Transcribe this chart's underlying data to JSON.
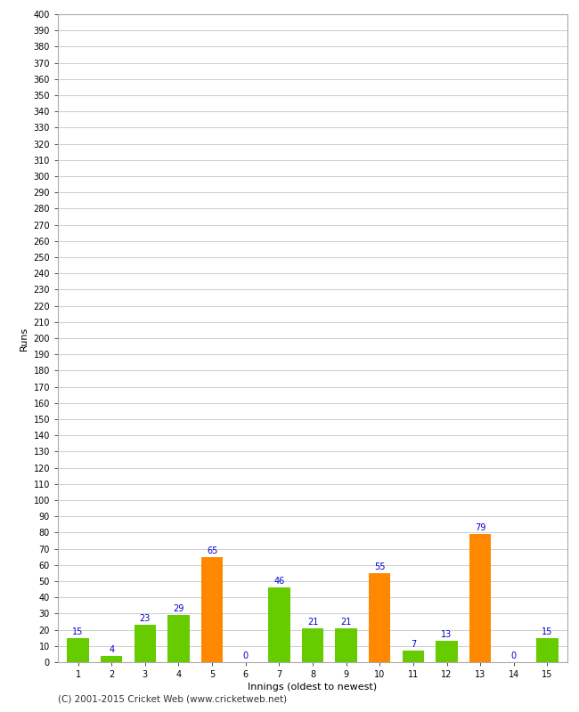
{
  "title": "",
  "xlabel": "Innings (oldest to newest)",
  "ylabel": "Runs",
  "categories": [
    "1",
    "2",
    "3",
    "4",
    "5",
    "6",
    "7",
    "8",
    "9",
    "10",
    "11",
    "12",
    "13",
    "14",
    "15"
  ],
  "values": [
    15,
    4,
    23,
    29,
    65,
    0,
    46,
    21,
    21,
    55,
    7,
    13,
    79,
    0,
    15
  ],
  "bar_colors": [
    "#66cc00",
    "#66cc00",
    "#66cc00",
    "#66cc00",
    "#ff8800",
    "#66cc00",
    "#66cc00",
    "#66cc00",
    "#66cc00",
    "#ff8800",
    "#66cc00",
    "#66cc00",
    "#ff8800",
    "#66cc00",
    "#66cc00"
  ],
  "label_color": "#0000cc",
  "ylim": [
    0,
    400
  ],
  "yticks": [
    0,
    10,
    20,
    30,
    40,
    50,
    60,
    70,
    80,
    90,
    100,
    110,
    120,
    130,
    140,
    150,
    160,
    170,
    180,
    190,
    200,
    210,
    220,
    230,
    240,
    250,
    260,
    270,
    280,
    290,
    300,
    310,
    320,
    330,
    340,
    350,
    360,
    370,
    380,
    390,
    400
  ],
  "background_color": "#ffffff",
  "grid_color": "#cccccc",
  "footer": "(C) 2001-2015 Cricket Web (www.cricketweb.net)",
  "ylabel_fontsize": 8,
  "xlabel_fontsize": 8,
  "tick_fontsize": 7,
  "bar_label_fontsize": 7,
  "footer_fontsize": 7.5,
  "bar_width": 0.65,
  "spine_color": "#aaaaaa"
}
